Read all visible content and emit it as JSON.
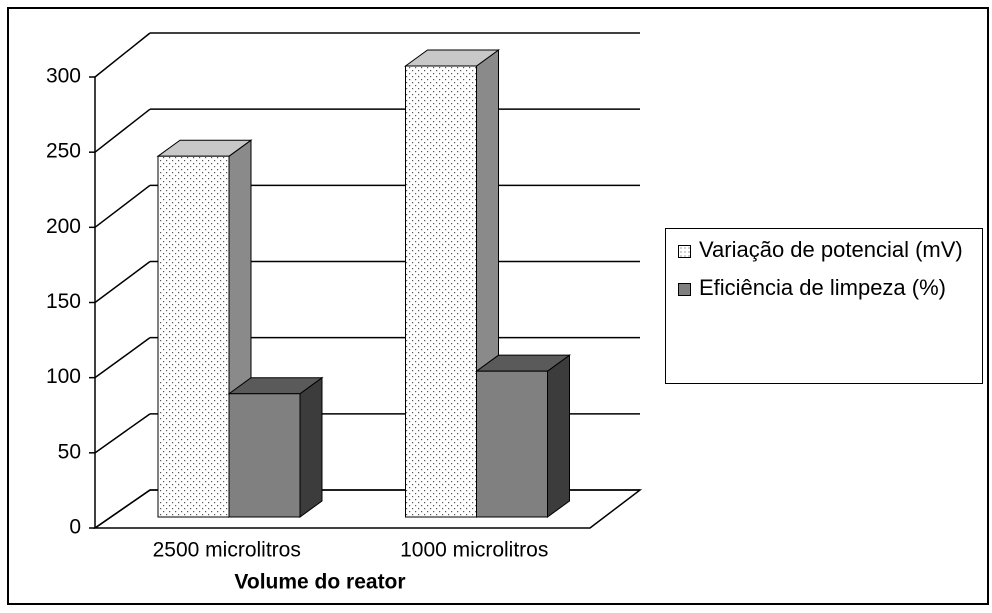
{
  "chart_data": {
    "type": "bar3d",
    "x_label": "Volume do reator",
    "categories": [
      "2500 microlitros",
      "1000 microlitros"
    ],
    "series": [
      {
        "name": "Variação de potencial (mV)",
        "color": "#ffffff",
        "values": [
          240,
          300
        ]
      },
      {
        "name": "Eficiência de limpeza (%)",
        "color": "#808080",
        "values": [
          82,
          97
        ]
      }
    ],
    "ylim": [
      0,
      300
    ],
    "yticks": [
      0,
      50,
      100,
      150,
      200,
      250,
      300
    ],
    "grid": true,
    "legend": "right"
  }
}
